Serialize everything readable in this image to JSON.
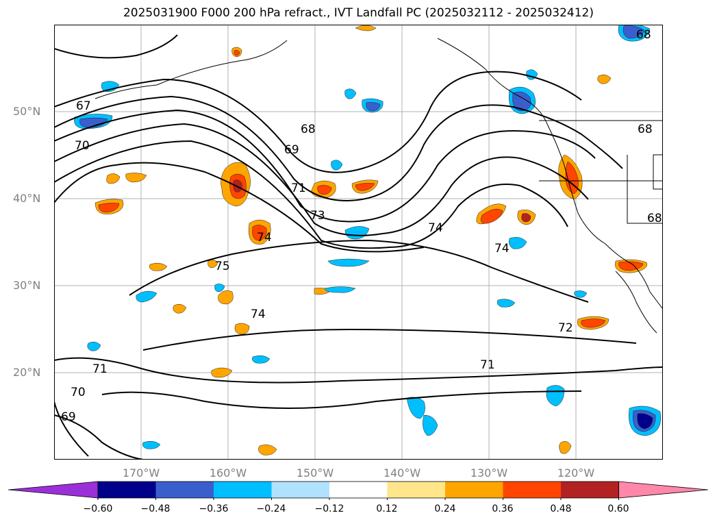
{
  "title": "2025031900 F000 200 hPa refract., IVT Landfall PC (2025032112 - 2025032412)",
  "lat_labels": [
    "50°N",
    "40°N",
    "30°N",
    "20°N"
  ],
  "lon_labels": [
    "170°W",
    "160°W",
    "150°W",
    "140°W",
    "130°W",
    "120°W"
  ],
  "contour_labels": [
    "67",
    "68",
    "69",
    "70",
    "71",
    "73",
    "74",
    "75",
    "74",
    "74",
    "74",
    "72",
    "71",
    "71",
    "70",
    "69",
    "68",
    "68",
    "68"
  ],
  "colorbar": {
    "tick_labels": [
      "−0.60",
      "−0.48",
      "−0.36",
      "−0.24",
      "−0.12",
      "0.12",
      "0.24",
      "0.36",
      "0.48",
      "0.60"
    ],
    "colors": [
      "#9b30d9",
      "#00008b",
      "#3a5fcd",
      "#00bfff",
      "#b0e2ff",
      "#ffffff",
      "#ffe68a",
      "#ffa500",
      "#ff4500",
      "#b22222",
      "#ff88aa"
    ]
  },
  "colors": {
    "neg_dark": "#00008b",
    "neg_mid": "#3a5fcd",
    "neg_light": "#00bfff",
    "neg_pale": "#b0e2ff",
    "pos_pale": "#ffe68a",
    "pos_mid": "#ffa500",
    "pos_strong": "#ff4500",
    "pos_dark": "#b22222"
  }
}
